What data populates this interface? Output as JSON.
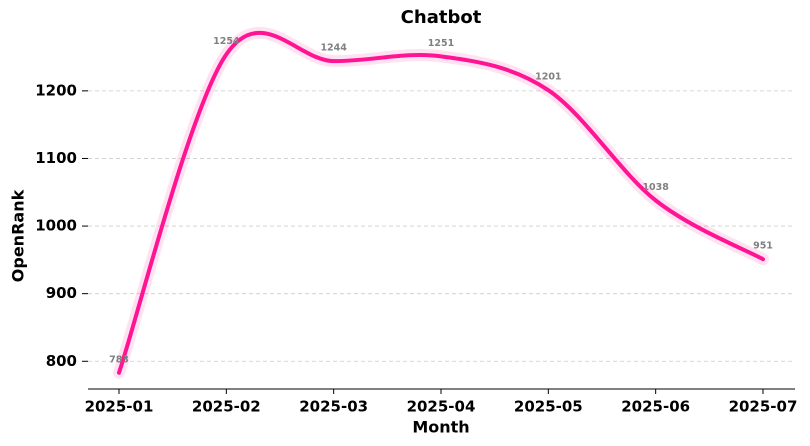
{
  "chart_data": {
    "type": "line",
    "title": "Chatbot",
    "x_label": "Month",
    "y_label": "OpenRank",
    "categories": [
      "2025-01",
      "2025-02",
      "2025-03",
      "2025-04",
      "2025-05",
      "2025-06",
      "2025-07"
    ],
    "series": [
      {
        "name": "Chatbot",
        "color": "#ff1493",
        "values": [
          783,
          1254,
          1244,
          1251,
          1201,
          1038,
          951
        ]
      }
    ],
    "ylim": [
      759,
      1290
    ],
    "yticks": [
      800,
      900,
      1000,
      1100,
      1200
    ],
    "grid": true
  }
}
